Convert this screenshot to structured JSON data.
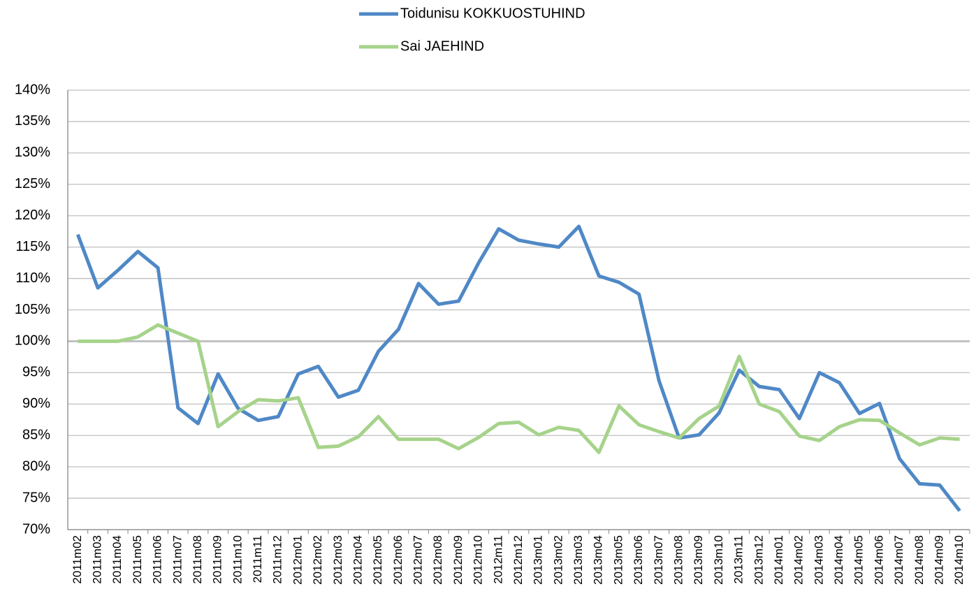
{
  "chart_data": {
    "type": "line",
    "categories": [
      "2011m02",
      "2011m03",
      "2011m04",
      "2011m05",
      "2011m06",
      "2011m07",
      "2011m08",
      "2011m09",
      "2011m10",
      "2011m11",
      "2011m12",
      "2012m01",
      "2012m02",
      "2012m03",
      "2012m04",
      "2012m05",
      "2012m06",
      "2012m07",
      "2012m08",
      "2012m09",
      "2012m10",
      "2012m11",
      "2012m12",
      "2013m01",
      "2013m02",
      "2013m03",
      "2013m04",
      "2013m05",
      "2013m06",
      "2013m07",
      "2013m08",
      "2013m09",
      "2013m10",
      "2013m11",
      "2013m12",
      "2014m01",
      "2014m02",
      "2014m03",
      "2014m04",
      "2014m05",
      "2014m06",
      "2014m07",
      "2014m08",
      "2014m09",
      "2014m10"
    ],
    "series": [
      {
        "name": "Toidunisu KOKKUOSTUHIND",
        "color": "#4f88c6",
        "values": [
          117,
          108.5,
          111.3,
          114.3,
          111.7,
          89.4,
          86.9,
          94.8,
          89.3,
          87.4,
          88.0,
          94.8,
          96.0,
          91.1,
          92.2,
          98.4,
          101.9,
          109.2,
          105.9,
          106.4,
          112.5,
          117.9,
          116.1,
          115.5,
          115.0,
          118.3,
          110.4,
          109.4,
          107.5,
          93.7,
          84.6,
          85.1,
          88.6,
          95.4,
          92.8,
          92.3,
          87.7,
          95.0,
          93.4,
          88.5,
          90.1,
          81.3,
          77.3,
          77.1,
          73.0
        ]
      },
      {
        "name": "Sai JAEHIND",
        "color": "#a6d38b",
        "values": [
          100,
          100,
          100,
          100.7,
          102.6,
          101.3,
          100,
          86.4,
          88.8,
          90.7,
          90.5,
          91.0,
          83.1,
          83.3,
          84.8,
          88.0,
          84.4,
          84.4,
          84.4,
          82.9,
          84.7,
          86.9,
          87.1,
          85.1,
          86.3,
          85.8,
          82.3,
          89.7,
          86.7,
          85.6,
          84.6,
          87.7,
          89.7,
          97.6,
          90.0,
          88.8,
          84.9,
          84.2,
          86.4,
          87.5,
          87.4,
          85.4,
          83.5,
          84.6,
          84.4
        ]
      }
    ],
    "ylim": [
      70,
      140
    ],
    "yticks": [
      {
        "value": 70,
        "label": "70%"
      },
      {
        "value": 75,
        "label": "75%"
      },
      {
        "value": 80,
        "label": "80%"
      },
      {
        "value": 85,
        "label": "85%"
      },
      {
        "value": 90,
        "label": "90%"
      },
      {
        "value": 95,
        "label": "95%"
      },
      {
        "value": 100,
        "label": "100%"
      },
      {
        "value": 105,
        "label": "105%"
      },
      {
        "value": 110,
        "label": "110%"
      },
      {
        "value": 115,
        "label": "115%"
      },
      {
        "value": 120,
        "label": "120%"
      },
      {
        "value": 125,
        "label": "125%"
      },
      {
        "value": 130,
        "label": "130%"
      },
      {
        "value": 135,
        "label": "135%"
      },
      {
        "value": 140,
        "label": "140%"
      }
    ],
    "grid": true,
    "reference_line": 100,
    "legend": "top"
  }
}
